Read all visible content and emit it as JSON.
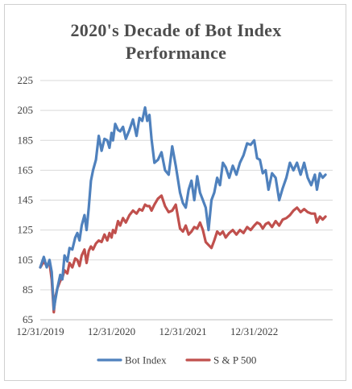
{
  "chart_data": {
    "type": "line",
    "title_line1": "2020's Decade of Bot Index",
    "title_line2": "Performance",
    "ylim": [
      65,
      225
    ],
    "yticks": [
      65,
      85,
      105,
      125,
      145,
      165,
      185,
      205,
      225
    ],
    "xlim": [
      0,
      4.1
    ],
    "xticks": [
      {
        "value": 0,
        "label": "12/31/2019"
      },
      {
        "value": 1,
        "label": "12/31/2020"
      },
      {
        "value": 2,
        "label": "12/31/2021"
      },
      {
        "value": 3,
        "label": "12/31/2022"
      }
    ],
    "grid": true,
    "legend_position": "bottom",
    "series": [
      {
        "name": "Bot Index",
        "color": "#4f81bd",
        "x": [
          0,
          0.05,
          0.09,
          0.13,
          0.16,
          0.19,
          0.21,
          0.24,
          0.28,
          0.31,
          0.34,
          0.38,
          0.41,
          0.45,
          0.49,
          0.52,
          0.55,
          0.58,
          0.62,
          0.65,
          0.68,
          0.71,
          0.74,
          0.78,
          0.82,
          0.86,
          0.9,
          0.94,
          0.97,
          1.0,
          1.02,
          1.05,
          1.09,
          1.12,
          1.16,
          1.2,
          1.25,
          1.3,
          1.35,
          1.39,
          1.43,
          1.47,
          1.5,
          1.53,
          1.56,
          1.6,
          1.65,
          1.7,
          1.75,
          1.8,
          1.85,
          1.9,
          1.96,
          2.0,
          2.04,
          2.08,
          2.12,
          2.16,
          2.2,
          2.24,
          2.28,
          2.32,
          2.36,
          2.4,
          2.44,
          2.48,
          2.52,
          2.56,
          2.6,
          2.65,
          2.7,
          2.75,
          2.8,
          2.85,
          2.9,
          2.95,
          3.0,
          3.04,
          3.08,
          3.12,
          3.16,
          3.2,
          3.25,
          3.3,
          3.35,
          3.4,
          3.45,
          3.5,
          3.55,
          3.6,
          3.65,
          3.7,
          3.75,
          3.8,
          3.85,
          3.88,
          3.92,
          3.96,
          4.0
        ],
        "values": [
          100,
          107,
          100,
          105,
          97,
          72,
          78,
          86,
          95,
          92,
          108,
          104,
          113,
          112,
          120,
          123,
          118,
          128,
          135,
          125,
          140,
          158,
          165,
          172,
          188,
          178,
          186,
          185,
          180,
          190,
          185,
          196,
          192,
          191,
          194,
          186,
          192,
          199,
          188,
          200,
          198,
          207,
          198,
          202,
          186,
          170,
          172,
          177,
          165,
          162,
          181,
          168,
          150,
          143,
          140,
          152,
          158,
          145,
          161,
          150,
          145,
          140,
          125,
          145,
          150,
          160,
          155,
          170,
          167,
          160,
          168,
          162,
          170,
          175,
          183,
          182,
          185,
          173,
          172,
          163,
          165,
          152,
          163,
          160,
          145,
          153,
          160,
          170,
          165,
          170,
          162,
          170,
          160,
          155,
          162,
          152,
          163,
          160,
          162
        ]
      },
      {
        "name": "S & P 500",
        "color": "#c0504d",
        "x": [
          0,
          0.05,
          0.09,
          0.13,
          0.16,
          0.19,
          0.21,
          0.24,
          0.28,
          0.31,
          0.34,
          0.38,
          0.41,
          0.45,
          0.49,
          0.52,
          0.55,
          0.58,
          0.62,
          0.65,
          0.68,
          0.71,
          0.74,
          0.78,
          0.82,
          0.86,
          0.9,
          0.94,
          0.97,
          1.0,
          1.02,
          1.05,
          1.09,
          1.12,
          1.16,
          1.2,
          1.25,
          1.3,
          1.35,
          1.39,
          1.43,
          1.47,
          1.5,
          1.53,
          1.56,
          1.6,
          1.65,
          1.7,
          1.75,
          1.8,
          1.85,
          1.9,
          1.96,
          2.0,
          2.04,
          2.08,
          2.12,
          2.16,
          2.2,
          2.24,
          2.28,
          2.32,
          2.36,
          2.4,
          2.44,
          2.48,
          2.52,
          2.56,
          2.6,
          2.65,
          2.7,
          2.75,
          2.8,
          2.85,
          2.9,
          2.95,
          3.0,
          3.04,
          3.08,
          3.12,
          3.16,
          3.2,
          3.25,
          3.3,
          3.35,
          3.4,
          3.45,
          3.5,
          3.55,
          3.6,
          3.65,
          3.7,
          3.75,
          3.8,
          3.85,
          3.88,
          3.92,
          3.96,
          4.0
        ],
        "values": [
          100,
          104,
          101,
          103,
          92,
          70,
          80,
          86,
          91,
          93,
          98,
          96,
          103,
          100,
          106,
          105,
          101,
          108,
          112,
          103,
          111,
          114,
          112,
          116,
          118,
          117,
          122,
          118,
          123,
          120,
          125,
          123,
          131,
          128,
          133,
          130,
          135,
          138,
          136,
          139,
          138,
          142,
          141,
          141,
          138,
          142,
          146,
          148,
          141,
          137,
          138,
          142,
          126,
          124,
          128,
          122,
          124,
          127,
          126,
          130,
          125,
          117,
          115,
          113,
          118,
          124,
          122,
          124,
          120,
          123,
          125,
          122,
          125,
          123,
          127,
          125,
          128,
          130,
          129,
          126,
          129,
          130,
          127,
          131,
          128,
          132,
          133,
          135,
          138,
          140,
          137,
          139,
          137,
          136,
          136,
          130,
          134,
          132,
          134
        ]
      }
    ]
  }
}
